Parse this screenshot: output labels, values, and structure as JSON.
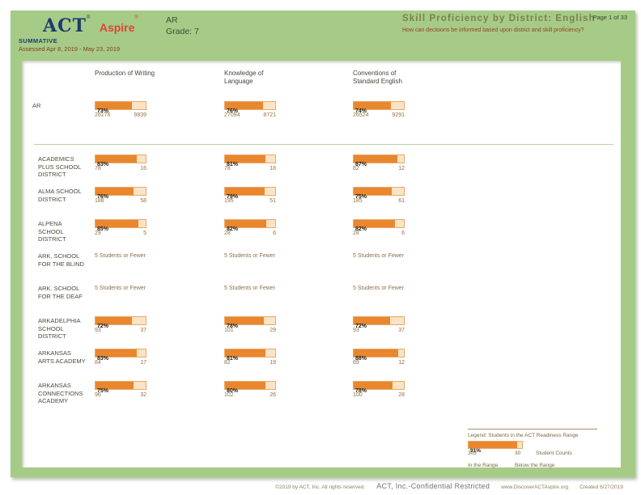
{
  "header": {
    "logo_act": "ACT",
    "logo_aspire": "Aspire",
    "logo_reg": "®",
    "program": "SUMMATIVE",
    "assessed": "Assessed Apr 8, 2019 - May 23, 2019",
    "region": "AR",
    "grade": "Grade: 7",
    "title": "Skill Proficiency by District: English",
    "question": "How can decisions be informed based upon district and skill proficiency?",
    "page_label": "Page 1 of 33"
  },
  "colors": {
    "frame_green": "#a5cb86",
    "bar_orange": "#e8872d",
    "bar_remainder": "#fbe4c6",
    "act_navy": "#1e3a6e",
    "aspire_red": "#e04438",
    "title_olive": "#7b8052",
    "question_red": "#96412c"
  },
  "table": {
    "columns": [
      "Production of Writing",
      "Knowledge of\nLanguage",
      "Conventions of\nStandard English"
    ],
    "summary": {
      "name": "AR",
      "cells": [
        {
          "pct": 73,
          "label": "73%",
          "in_range": "26176",
          "below_range": "9839"
        },
        {
          "pct": 76,
          "label": "76%",
          "in_range": "27094",
          "below_range": "8721"
        },
        {
          "pct": 74,
          "label": "74%",
          "in_range": "26524",
          "below_range": "9291"
        }
      ]
    },
    "rows": [
      {
        "name": "ACADEMICS\nPLUS SCHOOL\nDISTRICT",
        "cells": [
          {
            "pct": 83,
            "label": "83%",
            "in_range": "78",
            "below_range": "16"
          },
          {
            "pct": 81,
            "label": "81%",
            "in_range": "78",
            "below_range": "18"
          },
          {
            "pct": 87,
            "label": "87%",
            "in_range": "82",
            "below_range": "12"
          }
        ]
      },
      {
        "name": "ALMA SCHOOL\nDISTRICT",
        "cells": [
          {
            "pct": 76,
            "label": "76%",
            "in_range": "188",
            "below_range": "58"
          },
          {
            "pct": 79,
            "label": "79%",
            "in_range": "195",
            "below_range": "51"
          },
          {
            "pct": 75,
            "label": "75%",
            "in_range": "185",
            "below_range": "61"
          }
        ]
      },
      {
        "name": "ALPENA\nSCHOOL\nDISTRICT",
        "cells": [
          {
            "pct": 85,
            "label": "85%",
            "in_range": "29",
            "below_range": "5"
          },
          {
            "pct": 82,
            "label": "82%",
            "in_range": "28",
            "below_range": "6"
          },
          {
            "pct": 82,
            "label": "82%",
            "in_range": "28",
            "below_range": "6"
          }
        ]
      },
      {
        "name": "ARK. SCHOOL\nFOR THE BLIND",
        "cells": [
          {
            "suppressed": true,
            "note": "5 Students or Fewer"
          },
          {
            "suppressed": true,
            "note": "5 Students or Fewer"
          },
          {
            "suppressed": true,
            "note": "5 Students or Fewer"
          }
        ]
      },
      {
        "name": "ARK. SCHOOL\nFOR THE DEAF",
        "cells": [
          {
            "suppressed": true,
            "note": "5 Students or Fewer"
          },
          {
            "suppressed": true,
            "note": "5 Students or Fewer"
          },
          {
            "suppressed": true,
            "note": "5 Students or Fewer"
          }
        ]
      },
      {
        "name": "ARKADELPHIA\nSCHOOL\nDISTRICT",
        "cells": [
          {
            "pct": 72,
            "label": "72%",
            "in_range": "93",
            "below_range": "37"
          },
          {
            "pct": 78,
            "label": "78%",
            "in_range": "101",
            "below_range": "29"
          },
          {
            "pct": 72,
            "label": "72%",
            "in_range": "93",
            "below_range": "37"
          }
        ]
      },
      {
        "name": "ARKANSAS\nARTS ACADEMY",
        "cells": [
          {
            "pct": 83,
            "label": "83%",
            "in_range": "84",
            "below_range": "17"
          },
          {
            "pct": 81,
            "label": "81%",
            "in_range": "82",
            "below_range": "19"
          },
          {
            "pct": 88,
            "label": "88%",
            "in_range": "89",
            "below_range": "12"
          }
        ]
      },
      {
        "name": "ARKANSAS\nCONNECTIONS\nACADEMY",
        "cells": [
          {
            "pct": 75,
            "label": "75%",
            "in_range": "96",
            "below_range": "32"
          },
          {
            "pct": 80,
            "label": "80%",
            "in_range": "102",
            "below_range": "26"
          },
          {
            "pct": 78,
            "label": "78%",
            "in_range": "100",
            "below_range": "28"
          }
        ]
      }
    ]
  },
  "legend": {
    "title": "Legend: Students in the ACT Readiness Range",
    "pct": 91,
    "label": "91%",
    "in_range_count": "305",
    "below_range_count": "30",
    "counts_label": "Student Counts",
    "in_range_label": "In the Range",
    "below_range_label": "Below the Range"
  },
  "footer": {
    "copyright": "©2019 by ACT, Inc. All rights reserved.",
    "confidential": "ACT, Inc.-Confidential Restricted",
    "website": "www.DiscoverACTAspire.org",
    "created": "Created 6/27/2019"
  }
}
